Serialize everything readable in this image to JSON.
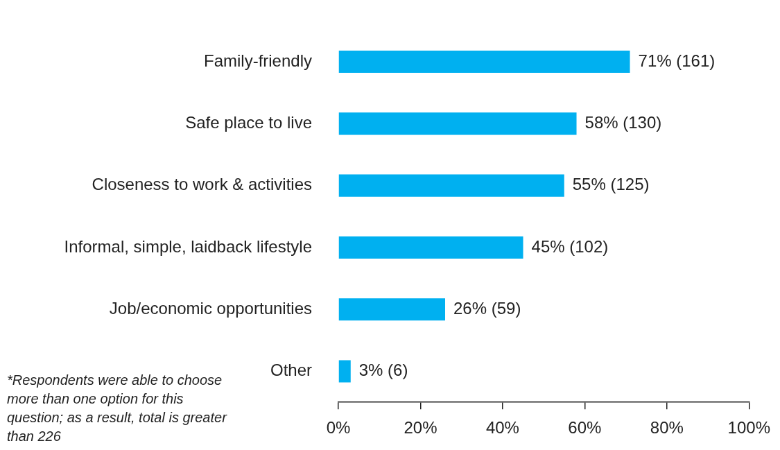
{
  "chart_data": {
    "type": "bar",
    "orientation": "horizontal",
    "categories": [
      "Family-friendly",
      "Safe place to live",
      "Closeness to work & activities",
      "Informal, simple, laidback lifestyle",
      "Job/economic opportunities",
      "Other"
    ],
    "values": [
      71,
      58,
      55,
      45,
      26,
      3
    ],
    "value_labels": [
      "71% (161)",
      "58% (130)",
      "55% (125)",
      "45% (102)",
      "26% (59)",
      "3% (6)"
    ],
    "color": "#00b0f0",
    "xlim": [
      0,
      100
    ],
    "xticks": [
      {
        "value": 0,
        "label": "0%"
      },
      {
        "value": 20,
        "label": "20%"
      },
      {
        "value": 40,
        "label": "40%"
      },
      {
        "value": 60,
        "label": "60%"
      },
      {
        "value": 80,
        "label": "80%"
      },
      {
        "value": 100,
        "label": "100%"
      }
    ],
    "grid": false,
    "legend": false,
    "annotations": [
      "*Respondents were able to choose more than one option for this question; as a result, total is greater than 226"
    ]
  }
}
